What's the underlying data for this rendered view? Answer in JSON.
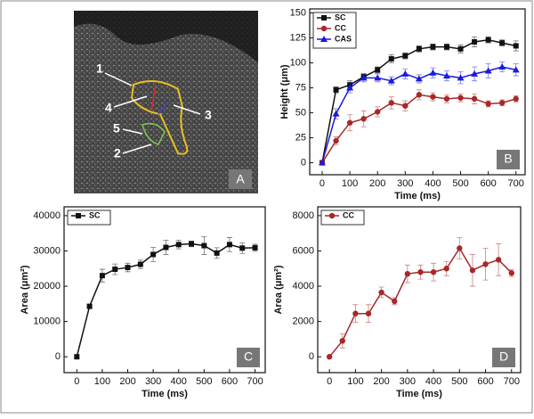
{
  "image_panel": {
    "label": "A",
    "annotations": [
      "1",
      "4",
      "5",
      "2",
      "3"
    ]
  },
  "chart_data": [
    {
      "type": "line",
      "panel_label": "B",
      "x_label": "Time (ms)",
      "y_label": "Height (μm)",
      "x": [
        0,
        50,
        100,
        150,
        200,
        250,
        300,
        350,
        400,
        450,
        500,
        550,
        600,
        650,
        700
      ],
      "series": [
        {
          "name": "SC",
          "color": "#111111",
          "marker": "square",
          "values": [
            0,
            73,
            78,
            86,
            93,
            104,
            107,
            114,
            116,
            116,
            114,
            121,
            123,
            120,
            117
          ],
          "errors": [
            0,
            3,
            4,
            3,
            3,
            4,
            3,
            3,
            3,
            3,
            4,
            5,
            3,
            3,
            5
          ]
        },
        {
          "name": "CC",
          "color": "#a82828",
          "marker": "circle",
          "values": [
            0,
            22,
            40,
            44,
            51,
            60,
            57,
            68,
            66,
            64,
            65,
            64,
            59,
            60,
            64
          ],
          "errors": [
            0,
            4,
            8,
            8,
            5,
            6,
            5,
            5,
            4,
            4,
            4,
            5,
            3,
            3,
            3
          ]
        },
        {
          "name": "CAS",
          "color": "#1a1ae0",
          "marker": "triangle",
          "values": [
            0,
            49,
            75,
            85,
            85,
            82,
            89,
            84,
            90,
            87,
            85,
            89,
            92,
            96,
            93
          ],
          "errors": [
            0,
            5,
            5,
            4,
            4,
            4,
            5,
            4,
            5,
            5,
            6,
            7,
            7,
            5,
            6
          ]
        }
      ],
      "xlim": [
        -45,
        733
      ],
      "ylim": [
        -12,
        154
      ],
      "xticks": [
        0,
        100,
        200,
        300,
        400,
        500,
        600,
        700
      ],
      "yticks": [
        0,
        25,
        50,
        75,
        100,
        125,
        150
      ]
    },
    {
      "type": "line",
      "panel_label": "C",
      "x_label": "Time (ms)",
      "y_label": "Area (μm²)",
      "x": [
        0,
        50,
        100,
        150,
        200,
        250,
        300,
        350,
        400,
        450,
        500,
        550,
        600,
        650,
        700
      ],
      "series": [
        {
          "name": "SC",
          "color": "#111111",
          "marker": "square",
          "values": [
            0,
            14300,
            23000,
            24800,
            25300,
            26200,
            29000,
            31000,
            31800,
            32000,
            31500,
            29400,
            31800,
            30800,
            30900
          ],
          "errors": [
            0,
            500,
            1800,
            1500,
            1200,
            1200,
            2000,
            2000,
            1200,
            800,
            2500,
            1500,
            2000,
            1500,
            1000
          ]
        }
      ],
      "xlim": [
        -50,
        740
      ],
      "ylim": [
        -4500,
        42500
      ],
      "xticks": [
        0,
        100,
        200,
        300,
        400,
        500,
        600,
        700
      ],
      "yticks": [
        0,
        10000,
        20000,
        30000,
        40000
      ]
    },
    {
      "type": "line",
      "panel_label": "D",
      "x_label": "Time (ms)",
      "y_label": "Area (μm²)",
      "x": [
        0,
        50,
        100,
        150,
        200,
        250,
        300,
        350,
        400,
        450,
        500,
        550,
        600,
        650,
        700
      ],
      "series": [
        {
          "name": "CC",
          "color": "#a82828",
          "marker": "circle",
          "values": [
            0,
            900,
            2450,
            2450,
            3650,
            3150,
            4700,
            4800,
            4800,
            5000,
            6150,
            4900,
            5250,
            5500,
            4750
          ],
          "errors": [
            0,
            400,
            500,
            500,
            300,
            200,
            500,
            400,
            500,
            400,
            600,
            900,
            900,
            900,
            200
          ]
        }
      ],
      "xlim": [
        -45,
        735
      ],
      "ylim": [
        -900,
        8500
      ],
      "xticks": [
        0,
        100,
        200,
        300,
        400,
        500,
        600,
        700
      ],
      "yticks": [
        0,
        2000,
        4000,
        6000,
        8000
      ]
    }
  ]
}
